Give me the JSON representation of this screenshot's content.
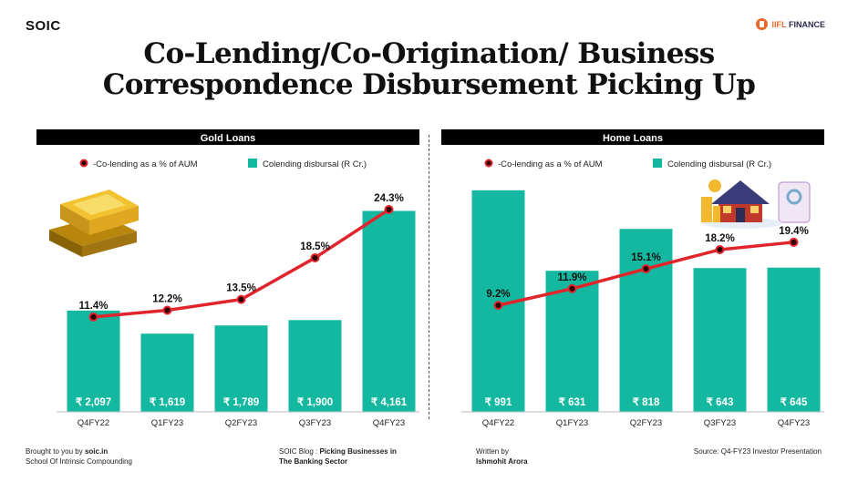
{
  "brand": "SOIC",
  "logo": {
    "text_a": "IIFL",
    "text_b": "FINANCE"
  },
  "title_line1": "Co-Lending/Co-Origination/ Business",
  "title_line2": "Correspondence Disbursement Picking Up",
  "colors": {
    "bar": "#14b8a0",
    "line": "#e0262c",
    "marker": "#2a0000",
    "header_bg": "#000000",
    "header_text": "#ffffff"
  },
  "chart_data": [
    {
      "type": "bar",
      "title": "Gold Loans",
      "categories": [
        "Q4FY22",
        "Q1FY23",
        "Q2FY23",
        "Q3FY23",
        "Q4FY23"
      ],
      "series": [
        {
          "name": "Colending disbursal (R Cr.)",
          "type": "bar",
          "values": [
            2097,
            1619,
            1789,
            1900,
            4161
          ],
          "labels": [
            "₹ 2,097",
            "₹ 1,619",
            "₹ 1,789",
            "₹ 1,900",
            "₹ 4,161"
          ]
        },
        {
          "name": "-Co-lending as a % of AUM",
          "type": "line",
          "values": [
            11.4,
            12.2,
            13.5,
            18.5,
            24.3
          ],
          "labels": [
            "11.4%",
            "12.2%",
            "13.5%",
            "18.5%",
            "24.3%"
          ]
        }
      ],
      "bar_max": 5000,
      "line_range": [
        0,
        29
      ]
    },
    {
      "type": "bar",
      "title": "Home Loans",
      "categories": [
        "Q4FY22",
        "Q1FY23",
        "Q2FY23",
        "Q3FY23",
        "Q4FY23"
      ],
      "series": [
        {
          "name": "Colending disbursal (R Cr.)",
          "type": "bar",
          "values": [
            991,
            631,
            818,
            643,
            645
          ],
          "labels": [
            "₹ 991",
            "₹ 631",
            "₹ 818",
            "₹ 643",
            "₹ 645"
          ]
        },
        {
          "name": "-Co-lending as a % of AUM",
          "type": "line",
          "values": [
            9.2,
            11.9,
            15.1,
            18.2,
            19.4
          ],
          "labels": [
            "9.2%",
            "11.9%",
            "15.1%",
            "18.2%",
            "19.4%"
          ]
        }
      ],
      "bar_max": 1080,
      "line_range": [
        -8,
        31
      ]
    }
  ],
  "footer": {
    "col1_prefix": "Brought to you by ",
    "col1_bold": "soic.in",
    "col1_line2": "School Of Intrinsic Compounding",
    "col2_prefix": "SOIC Blog : ",
    "col2_bold1": "Picking Businesses in",
    "col2_bold2": "The Banking Sector",
    "col3_line1": "Written by",
    "col3_bold": "Ishmohit Arora",
    "col4": "Source: Q4-FY23 Investor Presentation"
  }
}
